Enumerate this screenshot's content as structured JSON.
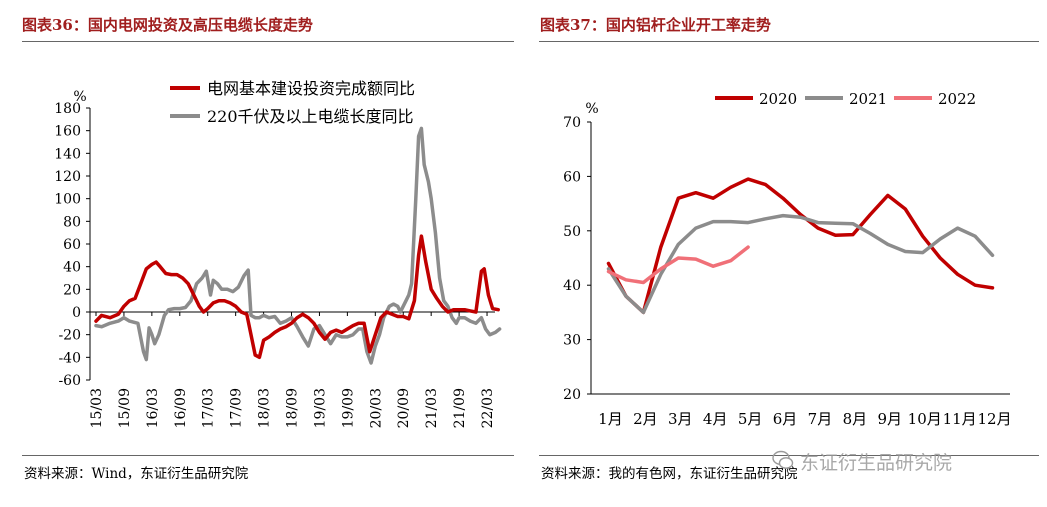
{
  "left": {
    "title": "图表36：国内电网投资及高压电缆长度走势",
    "source": "资料来源：Wind，东证衍生品研究院",
    "chart_data": {
      "type": "line",
      "ylabel": "%",
      "ylim": [
        -60,
        180
      ],
      "yticks": [
        -60,
        -40,
        -20,
        0,
        20,
        40,
        60,
        80,
        100,
        120,
        140,
        160,
        180
      ],
      "xticks": [
        "15/03",
        "15/09",
        "16/03",
        "16/09",
        "17/03",
        "17/09",
        "18/03",
        "18/09",
        "19/03",
        "19/09",
        "20/03",
        "20/09",
        "21/03",
        "21/09",
        "22/03"
      ],
      "legend_position": "top",
      "series": [
        {
          "name": "电网基本建设投资完成额同比",
          "color": "#c00000",
          "points": [
            [
              0,
              -8
            ],
            [
              0.2,
              -3
            ],
            [
              0.5,
              -5
            ],
            [
              0.8,
              -2
            ],
            [
              1.0,
              5
            ],
            [
              1.2,
              10
            ],
            [
              1.4,
              12
            ],
            [
              1.6,
              25
            ],
            [
              1.8,
              38
            ],
            [
              2.0,
              42
            ],
            [
              2.15,
              44
            ],
            [
              2.3,
              40
            ],
            [
              2.5,
              34
            ],
            [
              2.7,
              33
            ],
            [
              2.9,
              33
            ],
            [
              3.1,
              30
            ],
            [
              3.3,
              25
            ],
            [
              3.5,
              15
            ],
            [
              3.7,
              5
            ],
            [
              3.85,
              0
            ],
            [
              4.0,
              3
            ],
            [
              4.2,
              8
            ],
            [
              4.4,
              10
            ],
            [
              4.6,
              10
            ],
            [
              4.8,
              8
            ],
            [
              5.0,
              5
            ],
            [
              5.2,
              0
            ],
            [
              5.4,
              -2
            ],
            [
              5.55,
              -20
            ],
            [
              5.7,
              -38
            ],
            [
              5.85,
              -40
            ],
            [
              6.0,
              -25
            ],
            [
              6.2,
              -22
            ],
            [
              6.4,
              -18
            ],
            [
              6.6,
              -15
            ],
            [
              6.8,
              -13
            ],
            [
              7.0,
              -10
            ],
            [
              7.2,
              -5
            ],
            [
              7.4,
              -2
            ],
            [
              7.6,
              -5
            ],
            [
              7.8,
              -10
            ],
            [
              8.0,
              -18
            ],
            [
              8.2,
              -24
            ],
            [
              8.4,
              -18
            ],
            [
              8.6,
              -16
            ],
            [
              8.8,
              -18
            ],
            [
              9.0,
              -15
            ],
            [
              9.2,
              -12
            ],
            [
              9.4,
              -10
            ],
            [
              9.6,
              -10
            ],
            [
              9.8,
              -35
            ],
            [
              10.0,
              -20
            ],
            [
              10.2,
              -5
            ],
            [
              10.4,
              0
            ],
            [
              10.6,
              -2
            ],
            [
              10.8,
              -4
            ],
            [
              11.0,
              -4
            ],
            [
              11.2,
              -6
            ],
            [
              11.4,
              10
            ],
            [
              11.55,
              50
            ],
            [
              11.65,
              67
            ],
            [
              11.8,
              45
            ],
            [
              12.0,
              20
            ],
            [
              12.2,
              12
            ],
            [
              12.4,
              5
            ],
            [
              12.6,
              0
            ],
            [
              12.8,
              2
            ],
            [
              13.0,
              2
            ],
            [
              13.2,
              2
            ],
            [
              13.4,
              1
            ],
            [
              13.6,
              0
            ],
            [
              13.8,
              36
            ],
            [
              13.9,
              38
            ],
            [
              14.05,
              15
            ],
            [
              14.2,
              3
            ],
            [
              14.4,
              2
            ]
          ]
        },
        {
          "name": "220千伏及以上电缆长度同比",
          "color": "#8c8c8c",
          "points": [
            [
              0,
              -12
            ],
            [
              0.2,
              -13
            ],
            [
              0.5,
              -10
            ],
            [
              0.8,
              -8
            ],
            [
              1.0,
              -5
            ],
            [
              1.2,
              -8
            ],
            [
              1.5,
              -10
            ],
            [
              1.7,
              -35
            ],
            [
              1.8,
              -42
            ],
            [
              1.9,
              -14
            ],
            [
              2.0,
              -20
            ],
            [
              2.1,
              -28
            ],
            [
              2.25,
              -20
            ],
            [
              2.45,
              -3
            ],
            [
              2.6,
              2
            ],
            [
              2.8,
              3
            ],
            [
              3.0,
              3
            ],
            [
              3.2,
              4
            ],
            [
              3.4,
              10
            ],
            [
              3.6,
              25
            ],
            [
              3.8,
              30
            ],
            [
              3.95,
              36
            ],
            [
              4.1,
              15
            ],
            [
              4.2,
              28
            ],
            [
              4.35,
              25
            ],
            [
              4.5,
              20
            ],
            [
              4.7,
              20
            ],
            [
              4.9,
              18
            ],
            [
              5.1,
              22
            ],
            [
              5.3,
              32
            ],
            [
              5.45,
              37
            ],
            [
              5.55,
              -3
            ],
            [
              5.7,
              -5
            ],
            [
              5.85,
              -5
            ],
            [
              6.0,
              -3
            ],
            [
              6.2,
              -5
            ],
            [
              6.4,
              -4
            ],
            [
              6.6,
              -10
            ],
            [
              6.8,
              -8
            ],
            [
              7.0,
              -5
            ],
            [
              7.2,
              -13
            ],
            [
              7.4,
              -22
            ],
            [
              7.6,
              -30
            ],
            [
              7.8,
              -15
            ],
            [
              8.0,
              -12
            ],
            [
              8.2,
              -20
            ],
            [
              8.4,
              -28
            ],
            [
              8.6,
              -20
            ],
            [
              8.8,
              -22
            ],
            [
              9.0,
              -22
            ],
            [
              9.2,
              -20
            ],
            [
              9.4,
              -15
            ],
            [
              9.55,
              -15
            ],
            [
              9.7,
              -35
            ],
            [
              9.85,
              -45
            ],
            [
              10.0,
              -30
            ],
            [
              10.15,
              -20
            ],
            [
              10.3,
              -5
            ],
            [
              10.5,
              5
            ],
            [
              10.65,
              7
            ],
            [
              10.8,
              5
            ],
            [
              10.9,
              0
            ],
            [
              11.0,
              5
            ],
            [
              11.1,
              10
            ],
            [
              11.2,
              15
            ],
            [
              11.3,
              25
            ],
            [
              11.45,
              100
            ],
            [
              11.55,
              155
            ],
            [
              11.65,
              162
            ],
            [
              11.75,
              130
            ],
            [
              11.9,
              115
            ],
            [
              12.0,
              100
            ],
            [
              12.15,
              70
            ],
            [
              12.3,
              30
            ],
            [
              12.45,
              10
            ],
            [
              12.6,
              5
            ],
            [
              12.75,
              -5
            ],
            [
              12.9,
              -10
            ],
            [
              13.0,
              -5
            ],
            [
              13.2,
              -5
            ],
            [
              13.4,
              -8
            ],
            [
              13.6,
              -10
            ],
            [
              13.8,
              -5
            ],
            [
              13.95,
              -15
            ],
            [
              14.1,
              -20
            ],
            [
              14.3,
              -18
            ],
            [
              14.45,
              -15
            ]
          ]
        }
      ]
    }
  },
  "right": {
    "title": "图表37：国内铝杆企业开工率走势",
    "source": "资料来源：我的有色网，东证衍生品研究院",
    "chart_data": {
      "type": "line",
      "ylabel": "%",
      "ylim": [
        20,
        70
      ],
      "yticks": [
        20,
        30,
        40,
        50,
        60,
        70
      ],
      "categories": [
        "1月",
        "2月",
        "3月",
        "4月",
        "5月",
        "6月",
        "7月",
        "8月",
        "9月",
        "10月",
        "11月",
        "12月"
      ],
      "legend_position": "top",
      "series": [
        {
          "name": "2020",
          "color": "#c00000",
          "points": [
            [
              1,
              44
            ],
            [
              1.5,
              38
            ],
            [
              2,
              35
            ],
            [
              2.5,
              47
            ],
            [
              3,
              56
            ],
            [
              3.5,
              57
            ],
            [
              4,
              56
            ],
            [
              4.5,
              58
            ],
            [
              5,
              59.5
            ],
            [
              5.5,
              58.5
            ],
            [
              6,
              56
            ],
            [
              6.5,
              53
            ],
            [
              7,
              50.5
            ],
            [
              7.5,
              49.2
            ],
            [
              8,
              49.3
            ],
            [
              8.5,
              53
            ],
            [
              9,
              56.5
            ],
            [
              9.5,
              54
            ],
            [
              10,
              49
            ],
            [
              10.5,
              45
            ],
            [
              11,
              42
            ],
            [
              11.5,
              40
            ],
            [
              12,
              39.5
            ]
          ]
        },
        {
          "name": "2021",
          "color": "#8c8c8c",
          "points": [
            [
              1,
              43
            ],
            [
              1.5,
              38
            ],
            [
              2,
              35
            ],
            [
              2.5,
              42
            ],
            [
              3,
              47.5
            ],
            [
              3.5,
              50.5
            ],
            [
              4,
              51.7
            ],
            [
              4.5,
              51.7
            ],
            [
              5,
              51.5
            ],
            [
              5.5,
              52.2
            ],
            [
              6,
              52.8
            ],
            [
              6.5,
              52.5
            ],
            [
              7,
              51.5
            ],
            [
              7.5,
              51.4
            ],
            [
              8,
              51.3
            ],
            [
              8.5,
              49.5
            ],
            [
              9,
              47.5
            ],
            [
              9.5,
              46.2
            ],
            [
              10,
              46
            ],
            [
              10.5,
              48.5
            ],
            [
              11,
              50.5
            ],
            [
              11.5,
              49
            ],
            [
              12,
              45.5
            ]
          ]
        },
        {
          "name": "2022",
          "color": "#f07078",
          "points": [
            [
              1,
              42.5
            ],
            [
              1.5,
              41
            ],
            [
              2,
              40.5
            ],
            [
              2.5,
              43
            ],
            [
              3,
              45
            ],
            [
              3.5,
              44.8
            ],
            [
              4,
              43.5
            ],
            [
              4.5,
              44.5
            ],
            [
              5,
              47
            ]
          ]
        }
      ]
    }
  },
  "watermark": "东证衍生品研究院"
}
